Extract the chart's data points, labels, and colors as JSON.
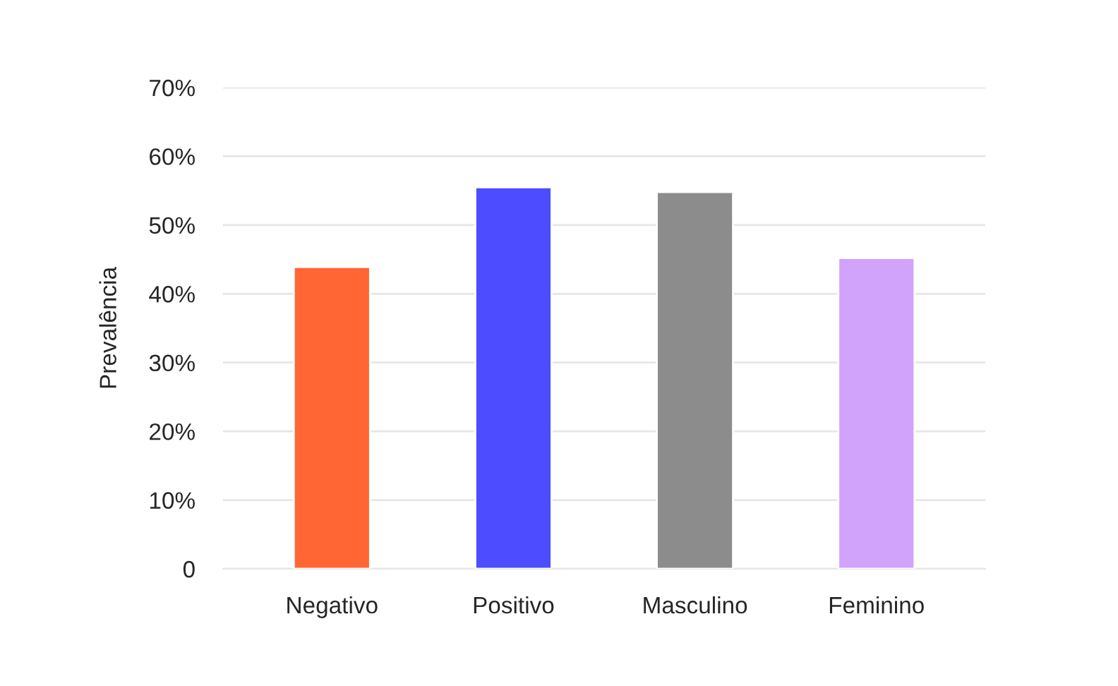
{
  "chart_data": {
    "type": "bar",
    "ylabel": "Prevalência",
    "categories": [
      "Negativo",
      "Positivo",
      "Masculino",
      "Feminino"
    ],
    "values": [
      43.9,
      55.5,
      54.8,
      45.2
    ],
    "colors": [
      "#ff6633",
      "#4d4dff",
      "#8c8c8c",
      "#d1a3fa"
    ],
    "ylim": [
      0,
      70
    ],
    "yticks": [
      0,
      {
        "value": 10,
        "label": "10%"
      },
      {
        "value": 20,
        "label": "20%"
      },
      {
        "value": 30,
        "label": "30%"
      },
      {
        "value": 40,
        "label": "40%"
      },
      {
        "value": 50,
        "label": "50%"
      },
      {
        "value": 60,
        "label": "60%"
      },
      {
        "value": 70,
        "label": "70%"
      }
    ],
    "grid": "y"
  }
}
